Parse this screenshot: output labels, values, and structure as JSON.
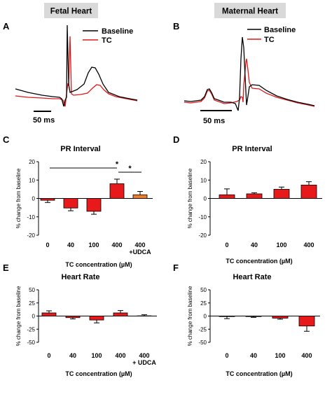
{
  "headers": {
    "fetal": "Fetal Heart",
    "maternal": "Maternal Heart"
  },
  "panels": {
    "A": "A",
    "B": "B",
    "C": "C",
    "D": "D",
    "E": "E",
    "F": "F"
  },
  "scale_bar_label": "50 ms",
  "trace_legend": [
    {
      "name": "Baseline",
      "color": "#000000"
    },
    {
      "name": "TC",
      "color": "#e01818"
    }
  ],
  "y_axis_label": "% change from baseline",
  "colors": {
    "bar_main": "#e8191a",
    "bar_udca": "#f07c28"
  },
  "chart_data": [
    {
      "panel": "C",
      "type": "bar",
      "title": "PR Interval",
      "xlabel": "TC concentration (µM)",
      "ylabel": "% change from baseline",
      "categories": [
        "0",
        "40",
        "100",
        "400",
        "400\n+UDCA"
      ],
      "values": [
        -1,
        -5.2,
        -7,
        8,
        2
      ],
      "errors": [
        1.2,
        1.5,
        1.6,
        2.5,
        1.8
      ],
      "bar_colors": [
        "#e8191a",
        "#e8191a",
        "#e8191a",
        "#e8191a",
        "#f07c28"
      ],
      "ylim": [
        -20,
        20
      ],
      "yticks": [
        -20,
        -10,
        0,
        10,
        20
      ],
      "significance": [
        {
          "from": 0,
          "to": 3,
          "label": "*"
        },
        {
          "from": 3,
          "to": 4,
          "label": "*"
        }
      ]
    },
    {
      "panel": "D",
      "type": "bar",
      "title": "PR Interval",
      "xlabel": "TC concentration (µM)",
      "ylabel": "% change from baseline",
      "categories": [
        "0",
        "40",
        "100",
        "400"
      ],
      "values": [
        2,
        2.5,
        5,
        7.3
      ],
      "errors": [
        3.2,
        0.6,
        1.2,
        1.8
      ],
      "bar_colors": [
        "#e8191a",
        "#e8191a",
        "#e8191a",
        "#e8191a"
      ],
      "ylim": [
        -20,
        20
      ],
      "yticks": [
        -20,
        -10,
        0,
        10,
        20
      ],
      "significance": []
    },
    {
      "panel": "E",
      "type": "bar",
      "title": "Heart Rate",
      "xlabel": "TC concentration (µM)",
      "ylabel": "% change from baseline",
      "categories": [
        "0",
        "40",
        "100",
        "400",
        "400\n+ UDCA"
      ],
      "values": [
        6,
        -3,
        -7.5,
        6,
        0.5
      ],
      "errors": [
        4,
        2.5,
        5.5,
        4.5,
        2
      ],
      "bar_colors": [
        "#e8191a",
        "#e8191a",
        "#e8191a",
        "#e8191a",
        "#f07c28"
      ],
      "ylim": [
        -50,
        50
      ],
      "yticks": [
        -50,
        -25,
        0,
        25,
        50
      ],
      "significance": []
    },
    {
      "panel": "F",
      "type": "bar",
      "title": "Heart Rate",
      "xlabel": "TC concentration (µM)",
      "ylabel": "% change from baseline",
      "categories": [
        "0",
        "40",
        "100",
        "400"
      ],
      "values": [
        -1,
        -1,
        -4,
        -19
      ],
      "errors": [
        4,
        1.5,
        2,
        10
      ],
      "bar_colors": [
        "#e8191a",
        "#e8191a",
        "#e8191a",
        "#e8191a"
      ],
      "ylim": [
        -50,
        50
      ],
      "yticks": [
        -50,
        -25,
        0,
        25,
        50
      ],
      "significance": []
    }
  ]
}
